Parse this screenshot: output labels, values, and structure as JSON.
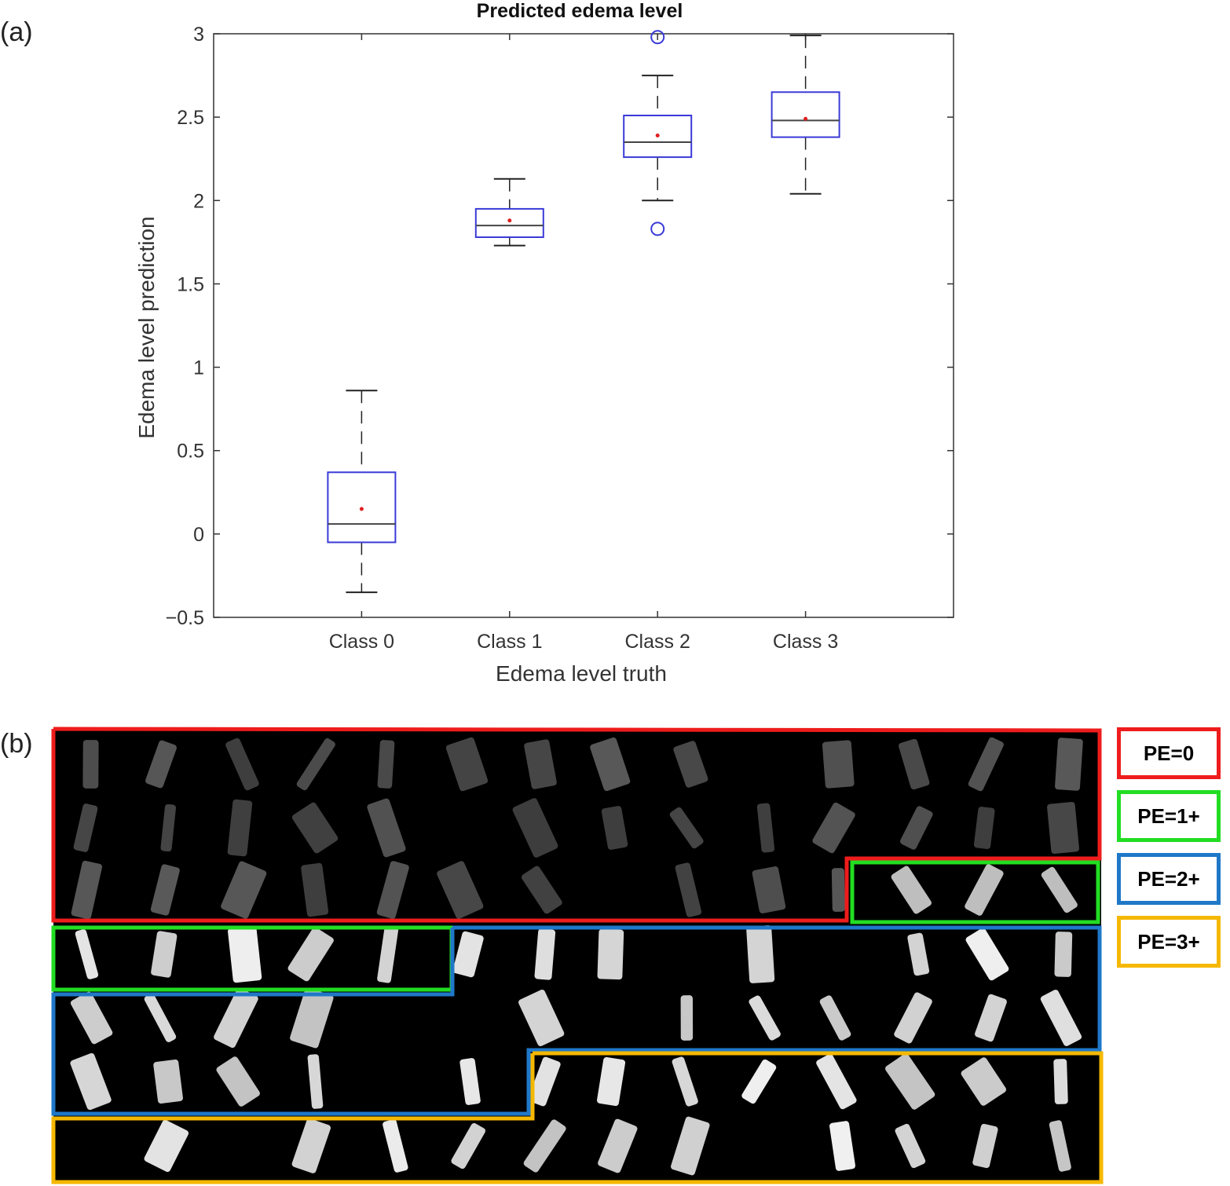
{
  "panel_a_label": "(a)",
  "panel_b_label": "(b)",
  "chart_data": {
    "type": "box",
    "title": "Predicted edema level",
    "xlabel": "Edema level truth",
    "ylabel": "Edema level prediction",
    "ylim": [
      -0.5,
      3
    ],
    "yticks": [
      -0.5,
      0,
      0.5,
      1,
      1.5,
      2,
      2.5,
      3
    ],
    "ytick_labels": [
      "−0.5",
      "0",
      "0.5",
      "1",
      "1.5",
      "2",
      "2.5",
      "3"
    ],
    "categories": [
      "Class 0",
      "Class 1",
      "Class 2",
      "Class 3"
    ],
    "grid": false,
    "box_color": "#3a3ad8",
    "median_color": "#444444",
    "mean_color": "#e02020",
    "boxes": [
      {
        "category": "Class 0",
        "whisker_low": -0.35,
        "q1": -0.05,
        "median": 0.06,
        "q3": 0.37,
        "whisker_high": 0.86,
        "mean": 0.15,
        "outliers": []
      },
      {
        "category": "Class 1",
        "whisker_low": 1.73,
        "q1": 1.78,
        "median": 1.85,
        "q3": 1.95,
        "whisker_high": 2.13,
        "mean": 1.88,
        "outliers": []
      },
      {
        "category": "Class 2",
        "whisker_low": 2.0,
        "q1": 2.26,
        "median": 2.35,
        "q3": 2.51,
        "whisker_high": 2.75,
        "mean": 2.39,
        "outliers": [
          1.83,
          2.98
        ]
      },
      {
        "category": "Class 3",
        "whisker_low": 2.04,
        "q1": 2.38,
        "median": 2.48,
        "q3": 2.65,
        "whisker_high": 2.99,
        "mean": 2.49,
        "outliers": []
      }
    ]
  },
  "legend": [
    {
      "label": "PE=0",
      "color": "#ee1c1c"
    },
    {
      "label": "PE=1+",
      "color": "#22dd22"
    },
    {
      "label": "PE=2+",
      "color": "#1f78c8"
    },
    {
      "label": "PE=3+",
      "color": "#f5b800"
    }
  ]
}
